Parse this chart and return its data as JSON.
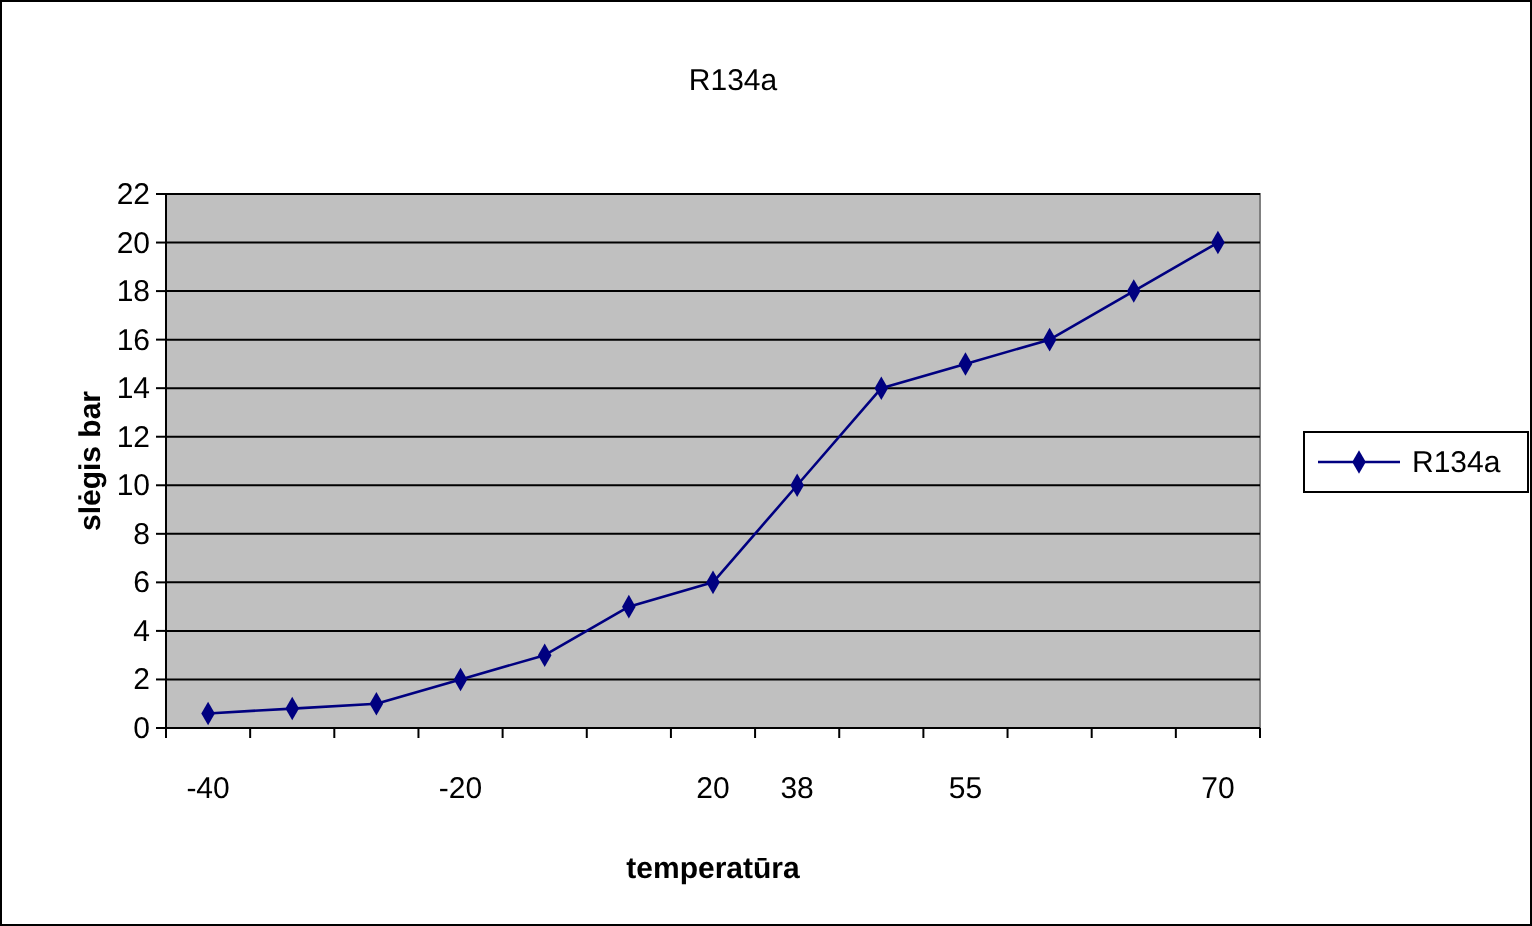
{
  "chart_data": {
    "type": "line",
    "title": "R134a",
    "xlabel": "temperatūra",
    "ylabel": "slėgis bar",
    "categories": [
      "-40",
      null,
      null,
      "-20",
      null,
      null,
      "20",
      "38",
      null,
      "55",
      null,
      null,
      "70"
    ],
    "series": [
      {
        "name": "R134a",
        "color": "#000080",
        "values": [
          0.6,
          0.8,
          1.0,
          2,
          3,
          5,
          6,
          10,
          14,
          15,
          16,
          18,
          20
        ]
      }
    ],
    "ylim": [
      0,
      22
    ],
    "yticks": [
      0,
      2,
      4,
      6,
      8,
      10,
      12,
      14,
      16,
      18,
      20,
      22
    ],
    "grid": "y",
    "legend": "right",
    "marker": "diamond",
    "line_style": "solid"
  }
}
